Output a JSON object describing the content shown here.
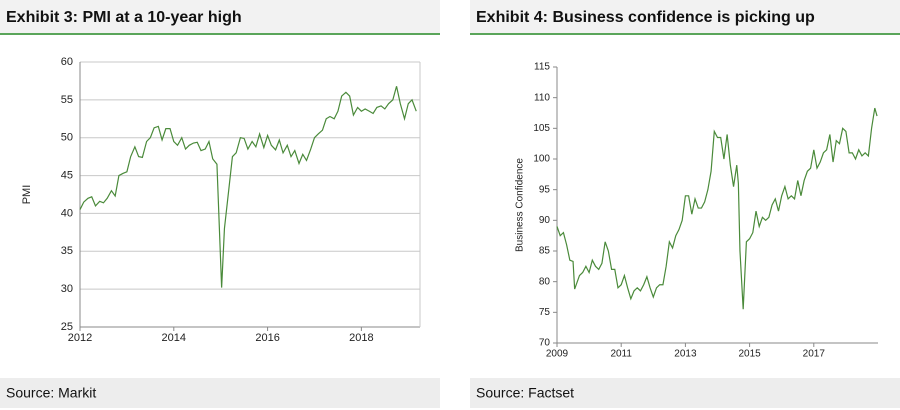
{
  "chart_data": [
    {
      "type": "line",
      "title": "Exhibit 3: PMI at a 10-year high",
      "source": "Source: Markit",
      "ylabel": "PMI",
      "color": "#4a8a3a",
      "grid": true,
      "xlim": [
        2012,
        2019.25
      ],
      "xticks": [
        2012,
        2014,
        2016,
        2018
      ],
      "ylim": [
        25,
        60
      ],
      "yticks": [
        25,
        30,
        35,
        40,
        45,
        50,
        55,
        60
      ],
      "x": [
        2012.0,
        2012.08,
        2012.17,
        2012.25,
        2012.33,
        2012.42,
        2012.5,
        2012.58,
        2012.67,
        2012.75,
        2012.83,
        2012.92,
        2013.0,
        2013.08,
        2013.17,
        2013.25,
        2013.33,
        2013.42,
        2013.5,
        2013.58,
        2013.67,
        2013.75,
        2013.83,
        2013.92,
        2014.0,
        2014.08,
        2014.17,
        2014.25,
        2014.33,
        2014.42,
        2014.5,
        2014.58,
        2014.67,
        2014.75,
        2014.83,
        2014.92,
        2015.02,
        2015.08,
        2015.17,
        2015.25,
        2015.33,
        2015.42,
        2015.5,
        2015.58,
        2015.67,
        2015.75,
        2015.83,
        2015.92,
        2016.0,
        2016.08,
        2016.17,
        2016.25,
        2016.33,
        2016.42,
        2016.5,
        2016.58,
        2016.67,
        2016.75,
        2016.83,
        2016.92,
        2017.0,
        2017.08,
        2017.17,
        2017.25,
        2017.33,
        2017.42,
        2017.5,
        2017.58,
        2017.67,
        2017.75,
        2017.83,
        2017.92,
        2018.0,
        2018.08,
        2018.17,
        2018.25,
        2018.33,
        2018.42,
        2018.5,
        2018.58,
        2018.67,
        2018.75,
        2018.83,
        2018.92,
        2019.0,
        2019.08,
        2019.17
      ],
      "values": [
        40.5,
        41.5,
        42,
        42.2,
        41,
        41.6,
        41.4,
        42,
        43,
        42.3,
        45,
        45.3,
        45.5,
        47.5,
        48.8,
        47.5,
        47.4,
        49.5,
        50,
        51.3,
        51.5,
        49.7,
        51.2,
        51.2,
        49.5,
        49,
        50,
        48.5,
        49,
        49.3,
        49.4,
        48.3,
        48.5,
        49.5,
        47.2,
        46.5,
        30.2,
        38,
        43,
        47.5,
        48,
        50,
        49.9,
        48.5,
        49.5,
        48.8,
        50.5,
        48.7,
        50.3,
        49,
        48.4,
        49.7,
        48,
        49,
        47.5,
        48.3,
        46.6,
        47.8,
        47,
        48.5,
        50,
        50.5,
        51,
        52.5,
        52.8,
        52.5,
        53.5,
        55.5,
        56,
        55.5,
        53,
        54,
        53.5,
        53.8,
        53.5,
        53.2,
        54,
        54.2,
        53.8,
        54.5,
        55,
        56.8,
        54.5,
        52.5,
        54.5,
        55,
        53.5
      ]
    },
    {
      "type": "line",
      "title": "Exhibit 4: Business confidence is picking up",
      "source": "Source: Factset",
      "ylabel": "Business Confidence",
      "color": "#4a8a3a",
      "grid": false,
      "xlim": [
        2009,
        2019
      ],
      "xticks": [
        2009,
        2011,
        2013,
        2015,
        2017
      ],
      "ylim": [
        70,
        115
      ],
      "yticks": [
        70,
        75,
        80,
        85,
        90,
        95,
        100,
        105,
        110,
        115
      ],
      "x": [
        2009.0,
        2009.1,
        2009.2,
        2009.3,
        2009.4,
        2009.5,
        2009.55,
        2009.7,
        2009.8,
        2009.9,
        2010.0,
        2010.1,
        2010.2,
        2010.3,
        2010.4,
        2010.5,
        2010.6,
        2010.7,
        2010.8,
        2010.9,
        2011.0,
        2011.1,
        2011.2,
        2011.3,
        2011.4,
        2011.5,
        2011.6,
        2011.7,
        2011.8,
        2011.9,
        2012.0,
        2012.1,
        2012.2,
        2012.3,
        2012.4,
        2012.5,
        2012.6,
        2012.7,
        2012.8,
        2012.9,
        2013.0,
        2013.1,
        2013.2,
        2013.3,
        2013.4,
        2013.5,
        2013.6,
        2013.7,
        2013.8,
        2013.9,
        2014.0,
        2014.1,
        2014.2,
        2014.3,
        2014.4,
        2014.5,
        2014.6,
        2014.65,
        2014.7,
        2014.8,
        2014.9,
        2015.0,
        2015.1,
        2015.2,
        2015.3,
        2015.4,
        2015.5,
        2015.6,
        2015.7,
        2015.8,
        2015.9,
        2016.0,
        2016.1,
        2016.2,
        2016.3,
        2016.4,
        2016.5,
        2016.6,
        2016.7,
        2016.8,
        2016.9,
        2017.0,
        2017.1,
        2017.2,
        2017.3,
        2017.4,
        2017.5,
        2017.6,
        2017.7,
        2017.8,
        2017.9,
        2018.0,
        2018.1,
        2018.2,
        2018.3,
        2018.4,
        2018.5,
        2018.6,
        2018.7,
        2018.8,
        2018.9,
        2018.97
      ],
      "values": [
        89,
        87.5,
        88,
        86,
        83.5,
        83.3,
        78.8,
        81,
        81.5,
        82.5,
        81.5,
        83.5,
        82.5,
        82,
        83,
        86.5,
        85,
        82,
        82,
        79,
        79.5,
        81,
        79,
        77.2,
        78.5,
        79,
        78.5,
        79.5,
        80.8,
        79,
        77.5,
        79,
        79.5,
        79.5,
        82.5,
        86.5,
        85.5,
        87.5,
        88.5,
        90,
        94,
        94,
        91,
        93.5,
        92,
        92,
        93,
        95,
        98,
        104.5,
        103.5,
        103.5,
        100,
        104,
        99,
        95.5,
        99,
        96,
        85,
        75.5,
        86.5,
        87,
        88,
        91.5,
        89,
        90.5,
        90,
        90.5,
        92.5,
        93.5,
        91.5,
        94,
        95.5,
        93.5,
        94,
        93.5,
        96.5,
        94,
        96.5,
        98,
        98.5,
        101.5,
        98.5,
        99.5,
        101,
        101.5,
        104,
        99.5,
        103,
        102.5,
        105,
        104.5,
        101,
        101,
        100,
        101.5,
        100.5,
        101,
        100.5,
        105,
        108.3,
        107
      ]
    }
  ]
}
